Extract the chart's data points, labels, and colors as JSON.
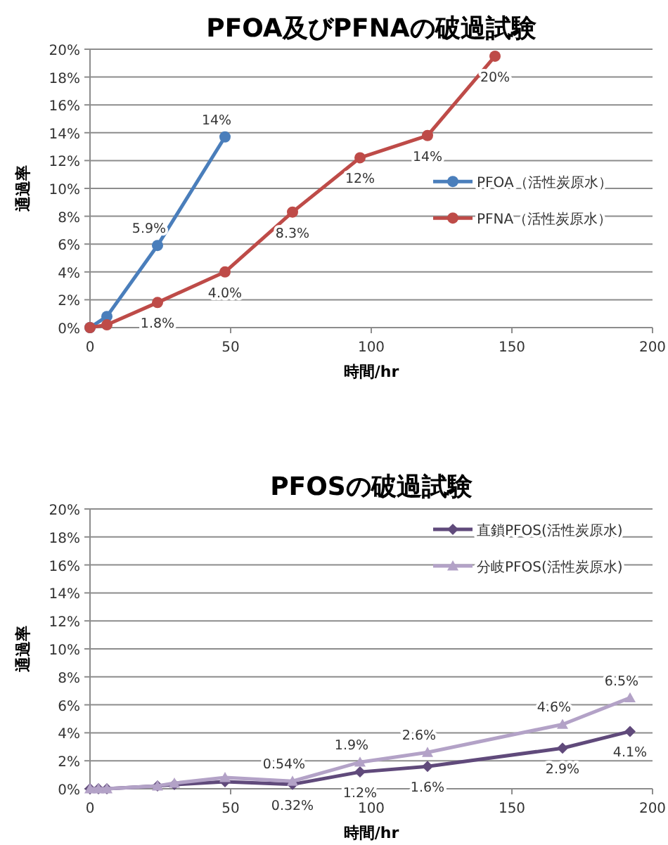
{
  "chart_data": [
    {
      "type": "line",
      "title": "PFOA及びPFNAの破過試験",
      "xlabel": "時間/hr",
      "ylabel": "通過率",
      "xlim": [
        0,
        200
      ],
      "xticks": [
        0,
        50,
        100,
        150,
        200
      ],
      "ylim": [
        0,
        20
      ],
      "yticks": [
        {
          "value": 0,
          "label": "0%"
        },
        {
          "value": 2,
          "label": "2%"
        },
        {
          "value": 4,
          "label": "4%"
        },
        {
          "value": 6,
          "label": "6%"
        },
        {
          "value": 8,
          "label": "8%"
        },
        {
          "value": 10,
          "label": "10%"
        },
        {
          "value": 12,
          "label": "12%"
        },
        {
          "value": 14,
          "label": "14%"
        },
        {
          "value": 16,
          "label": "16%"
        },
        {
          "value": 18,
          "label": "18%"
        },
        {
          "value": 20,
          "label": "20%"
        }
      ],
      "grid": "y",
      "legend": "right",
      "marker": "circle",
      "series": [
        {
          "name": "PFOA（活性炭原水）",
          "color": "#4a7ebb",
          "x": [
            0,
            6,
            24,
            48
          ],
          "values": [
            0,
            0.8,
            5.9,
            13.7
          ],
          "value_labels": [
            null,
            null,
            "5.9%",
            "14%"
          ]
        },
        {
          "name": "PFNA（活性炭原水）",
          "color": "#be4b48",
          "x": [
            0,
            6,
            24,
            48,
            72,
            96,
            120,
            144
          ],
          "values": [
            0,
            0.2,
            1.8,
            4.0,
            8.3,
            12.2,
            13.8,
            19.5
          ],
          "value_labels": [
            null,
            null,
            "1.8%",
            "4.0%",
            "8.3%",
            "12%",
            "14%",
            "20%"
          ]
        }
      ]
    },
    {
      "type": "line",
      "title": "PFOSの破過試験",
      "xlabel": "時間/hr",
      "ylabel": "通過率",
      "xlim": [
        0,
        200
      ],
      "xticks": [
        0,
        50,
        100,
        150,
        200
      ],
      "ylim": [
        0,
        20
      ],
      "yticks": [
        {
          "value": 0,
          "label": "0%"
        },
        {
          "value": 2,
          "label": "2%"
        },
        {
          "value": 4,
          "label": "4%"
        },
        {
          "value": 6,
          "label": "6%"
        },
        {
          "value": 8,
          "label": "8%"
        },
        {
          "value": 10,
          "label": "10%"
        },
        {
          "value": 12,
          "label": "12%"
        },
        {
          "value": 14,
          "label": "14%"
        },
        {
          "value": 16,
          "label": "16%"
        },
        {
          "value": 18,
          "label": "18%"
        },
        {
          "value": 20,
          "label": "20%"
        }
      ],
      "grid": "y",
      "legend": "right",
      "series": [
        {
          "name": "直鎖PFOS(活性炭原水)",
          "color": "#604a7b",
          "marker": "diamond",
          "x": [
            0,
            3,
            6,
            24,
            30,
            48,
            72,
            96,
            120,
            168,
            192
          ],
          "values": [
            0,
            0,
            0,
            0.2,
            0.3,
            0.5,
            0.32,
            1.2,
            1.6,
            2.9,
            4.1
          ],
          "value_labels": [
            null,
            null,
            null,
            null,
            null,
            null,
            "0.32%",
            "1.2%",
            "1.6%",
            "2.9%",
            "4.1%"
          ]
        },
        {
          "name": "分岐PFOS(活性炭原水)",
          "color": "#b3a2c7",
          "marker": "triangle",
          "x": [
            0,
            3,
            6,
            24,
            30,
            48,
            72,
            96,
            120,
            168,
            192
          ],
          "values": [
            0,
            0,
            0,
            0.2,
            0.4,
            0.8,
            0.54,
            1.9,
            2.6,
            4.6,
            6.5
          ],
          "value_labels": [
            null,
            null,
            null,
            null,
            null,
            null,
            "0.54%",
            "1.9%",
            "2.6%",
            "4.6%",
            "6.5%"
          ]
        }
      ]
    }
  ]
}
